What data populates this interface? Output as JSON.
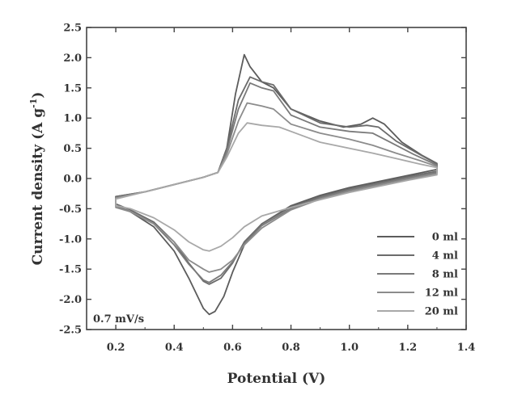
{
  "chart_data": {
    "type": "line",
    "xlabel": "Potential (V)",
    "ylabel": "Current density (A g",
    "ylabel_sup": "-1",
    "ylabel_suffix": ")",
    "annotation": "0.7 mV/s",
    "xlim": [
      0.1,
      1.4
    ],
    "ylim": [
      -2.5,
      2.5
    ],
    "x_ticks": [
      0.2,
      0.4,
      0.6,
      0.8,
      1.0,
      1.2,
      1.4
    ],
    "x_tick_labels": [
      "0.2",
      "0.4",
      "0.6",
      "0.8",
      "1.0",
      "1.2",
      "1.4"
    ],
    "y_ticks": [
      -2.5,
      -2.0,
      -1.5,
      -1.0,
      -0.5,
      0.0,
      0.5,
      1.0,
      1.5,
      2.0,
      2.5
    ],
    "y_tick_labels": [
      "-2.5",
      "-2.0",
      "-1.5",
      "-1.0",
      "-0.5",
      "0.0",
      "0.5",
      "1.0",
      "1.5",
      "2.0",
      "2.5"
    ],
    "legend_position": "bottom-right",
    "grid": false,
    "series": [
      {
        "name": "0 ml",
        "color": "#5c5c5c",
        "anodic": [
          [
            0.2,
            -0.3
          ],
          [
            0.3,
            -0.22
          ],
          [
            0.4,
            -0.1
          ],
          [
            0.5,
            0.02
          ],
          [
            0.55,
            0.1
          ],
          [
            0.58,
            0.5
          ],
          [
            0.61,
            1.4
          ],
          [
            0.64,
            2.05
          ],
          [
            0.66,
            1.85
          ],
          [
            0.7,
            1.6
          ],
          [
            0.74,
            1.5
          ],
          [
            0.8,
            1.15
          ],
          [
            0.9,
            0.95
          ],
          [
            0.98,
            0.85
          ],
          [
            1.04,
            0.9
          ],
          [
            1.08,
            1.0
          ],
          [
            1.12,
            0.9
          ],
          [
            1.18,
            0.6
          ],
          [
            1.25,
            0.38
          ],
          [
            1.3,
            0.25
          ]
        ],
        "cathodic": [
          [
            1.3,
            0.15
          ],
          [
            1.2,
            0.05
          ],
          [
            1.1,
            -0.05
          ],
          [
            1.0,
            -0.15
          ],
          [
            0.9,
            -0.28
          ],
          [
            0.8,
            -0.45
          ],
          [
            0.7,
            -0.75
          ],
          [
            0.64,
            -1.1
          ],
          [
            0.6,
            -1.55
          ],
          [
            0.57,
            -1.95
          ],
          [
            0.54,
            -2.2
          ],
          [
            0.52,
            -2.25
          ],
          [
            0.5,
            -2.15
          ],
          [
            0.45,
            -1.65
          ],
          [
            0.4,
            -1.2
          ],
          [
            0.33,
            -0.8
          ],
          [
            0.25,
            -0.55
          ],
          [
            0.2,
            -0.45
          ]
        ]
      },
      {
        "name": "4 ml",
        "color": "#6b6b6b",
        "anodic": [
          [
            0.2,
            -0.3
          ],
          [
            0.3,
            -0.22
          ],
          [
            0.4,
            -0.1
          ],
          [
            0.5,
            0.02
          ],
          [
            0.55,
            0.1
          ],
          [
            0.58,
            0.5
          ],
          [
            0.62,
            1.3
          ],
          [
            0.66,
            1.68
          ],
          [
            0.7,
            1.6
          ],
          [
            0.74,
            1.55
          ],
          [
            0.8,
            1.15
          ],
          [
            0.9,
            0.92
          ],
          [
            1.0,
            0.85
          ],
          [
            1.06,
            0.88
          ],
          [
            1.1,
            0.85
          ],
          [
            1.16,
            0.62
          ],
          [
            1.24,
            0.4
          ],
          [
            1.3,
            0.24
          ]
        ],
        "cathodic": [
          [
            1.3,
            0.12
          ],
          [
            1.2,
            0.03
          ],
          [
            1.1,
            -0.07
          ],
          [
            1.0,
            -0.17
          ],
          [
            0.9,
            -0.3
          ],
          [
            0.8,
            -0.47
          ],
          [
            0.7,
            -0.75
          ],
          [
            0.64,
            -1.05
          ],
          [
            0.6,
            -1.4
          ],
          [
            0.56,
            -1.65
          ],
          [
            0.52,
            -1.75
          ],
          [
            0.5,
            -1.7
          ],
          [
            0.45,
            -1.4
          ],
          [
            0.4,
            -1.05
          ],
          [
            0.33,
            -0.72
          ],
          [
            0.25,
            -0.52
          ],
          [
            0.2,
            -0.42
          ]
        ]
      },
      {
        "name": "8 ml",
        "color": "#7a7a7a",
        "anodic": [
          [
            0.2,
            -0.32
          ],
          [
            0.3,
            -0.22
          ],
          [
            0.4,
            -0.1
          ],
          [
            0.5,
            0.02
          ],
          [
            0.55,
            0.1
          ],
          [
            0.58,
            0.45
          ],
          [
            0.62,
            1.15
          ],
          [
            0.66,
            1.58
          ],
          [
            0.7,
            1.5
          ],
          [
            0.74,
            1.45
          ],
          [
            0.8,
            1.05
          ],
          [
            0.9,
            0.85
          ],
          [
            1.0,
            0.78
          ],
          [
            1.08,
            0.75
          ],
          [
            1.14,
            0.6
          ],
          [
            1.22,
            0.4
          ],
          [
            1.3,
            0.22
          ]
        ],
        "cathodic": [
          [
            1.3,
            0.1
          ],
          [
            1.2,
            0.01
          ],
          [
            1.1,
            -0.09
          ],
          [
            1.0,
            -0.19
          ],
          [
            0.9,
            -0.32
          ],
          [
            0.8,
            -0.5
          ],
          [
            0.7,
            -0.78
          ],
          [
            0.64,
            -1.08
          ],
          [
            0.6,
            -1.38
          ],
          [
            0.56,
            -1.6
          ],
          [
            0.52,
            -1.72
          ],
          [
            0.5,
            -1.68
          ],
          [
            0.45,
            -1.42
          ],
          [
            0.4,
            -1.1
          ],
          [
            0.33,
            -0.75
          ],
          [
            0.25,
            -0.55
          ],
          [
            0.2,
            -0.45
          ]
        ]
      },
      {
        "name": "12 ml",
        "color": "#8c8c8c",
        "anodic": [
          [
            0.2,
            -0.32
          ],
          [
            0.3,
            -0.22
          ],
          [
            0.4,
            -0.1
          ],
          [
            0.5,
            0.02
          ],
          [
            0.55,
            0.1
          ],
          [
            0.58,
            0.4
          ],
          [
            0.62,
            0.95
          ],
          [
            0.65,
            1.25
          ],
          [
            0.7,
            1.2
          ],
          [
            0.74,
            1.15
          ],
          [
            0.8,
            0.9
          ],
          [
            0.9,
            0.75
          ],
          [
            1.0,
            0.65
          ],
          [
            1.08,
            0.55
          ],
          [
            1.16,
            0.42
          ],
          [
            1.24,
            0.3
          ],
          [
            1.3,
            0.2
          ]
        ],
        "cathodic": [
          [
            1.3,
            0.08
          ],
          [
            1.2,
            -0.01
          ],
          [
            1.1,
            -0.11
          ],
          [
            1.0,
            -0.21
          ],
          [
            0.9,
            -0.34
          ],
          [
            0.8,
            -0.52
          ],
          [
            0.7,
            -0.82
          ],
          [
            0.64,
            -1.1
          ],
          [
            0.6,
            -1.35
          ],
          [
            0.56,
            -1.5
          ],
          [
            0.52,
            -1.55
          ],
          [
            0.5,
            -1.5
          ],
          [
            0.45,
            -1.35
          ],
          [
            0.4,
            -1.05
          ],
          [
            0.33,
            -0.75
          ],
          [
            0.25,
            -0.55
          ],
          [
            0.2,
            -0.48
          ]
        ]
      },
      {
        "name": "20 ml",
        "color": "#a8a8a8",
        "anodic": [
          [
            0.2,
            -0.34
          ],
          [
            0.3,
            -0.22
          ],
          [
            0.4,
            -0.1
          ],
          [
            0.5,
            0.02
          ],
          [
            0.55,
            0.1
          ],
          [
            0.58,
            0.35
          ],
          [
            0.62,
            0.75
          ],
          [
            0.65,
            0.92
          ],
          [
            0.7,
            0.88
          ],
          [
            0.76,
            0.85
          ],
          [
            0.8,
            0.78
          ],
          [
            0.9,
            0.6
          ],
          [
            1.0,
            0.5
          ],
          [
            1.08,
            0.42
          ],
          [
            1.16,
            0.33
          ],
          [
            1.24,
            0.24
          ],
          [
            1.3,
            0.18
          ]
        ],
        "cathodic": [
          [
            1.3,
            0.06
          ],
          [
            1.2,
            -0.03
          ],
          [
            1.1,
            -0.13
          ],
          [
            1.0,
            -0.23
          ],
          [
            0.9,
            -0.35
          ],
          [
            0.8,
            -0.48
          ],
          [
            0.7,
            -0.62
          ],
          [
            0.64,
            -0.8
          ],
          [
            0.6,
            -0.98
          ],
          [
            0.56,
            -1.12
          ],
          [
            0.52,
            -1.2
          ],
          [
            0.5,
            -1.18
          ],
          [
            0.45,
            -1.05
          ],
          [
            0.4,
            -0.85
          ],
          [
            0.33,
            -0.65
          ],
          [
            0.25,
            -0.5
          ],
          [
            0.2,
            -0.45
          ]
        ]
      }
    ]
  }
}
